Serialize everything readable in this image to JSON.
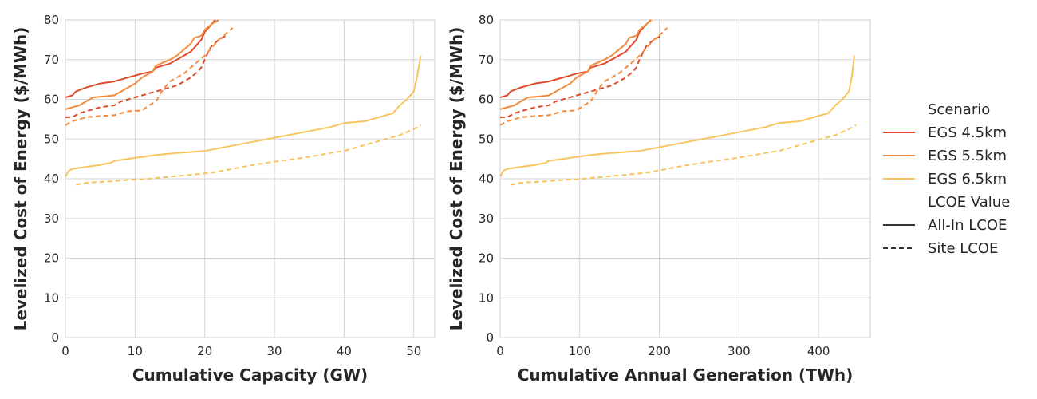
{
  "legend": {
    "title": "Scenario",
    "subtitle": "LCOE Value",
    "scenarios": [
      {
        "name": "EGS 4.5km",
        "color": "#e04a2a"
      },
      {
        "name": "EGS 5.5km",
        "color": "#f28b3c"
      },
      {
        "name": "EGS 6.5km",
        "color": "#f7c55d"
      }
    ],
    "styles": [
      {
        "name": "All-In LCOE",
        "dash": "solid"
      },
      {
        "name": "Site LCOE",
        "dash": "dashed"
      }
    ]
  },
  "chart_data": [
    {
      "type": "line",
      "xlabel": "Cumulative Capacity (GW)",
      "ylabel": "Levelized Cost of Energy ($/MWh)",
      "xlim": [
        0,
        53
      ],
      "ylim": [
        0,
        80
      ],
      "xticks": [
        0,
        10,
        20,
        30,
        40,
        50
      ],
      "yticks": [
        0,
        10,
        20,
        30,
        40,
        50,
        60,
        70,
        80
      ],
      "grid": true,
      "series": [
        {
          "name": "EGS 4.5km",
          "style": "All-In LCOE",
          "color": "#e04a2a",
          "x": [
            0,
            1,
            1.5,
            3,
            5,
            7,
            9,
            10,
            11,
            12.5,
            13,
            15,
            16,
            17,
            18,
            18.5,
            19.5,
            20,
            21,
            21.5
          ],
          "y": [
            60.5,
            61,
            62,
            63,
            64,
            64.5,
            65.5,
            66,
            66.5,
            67,
            68,
            69,
            70,
            71,
            72,
            73,
            75,
            77,
            79,
            80
          ]
        },
        {
          "name": "EGS 4.5km",
          "style": "Site LCOE",
          "color": "#e04a2a",
          "x": [
            0,
            1,
            2,
            3,
            5,
            7,
            8,
            10,
            12,
            13,
            14,
            16,
            17,
            18,
            19,
            19.5,
            20,
            20.5,
            21,
            22,
            23
          ],
          "y": [
            55.5,
            55.5,
            56.5,
            57,
            58,
            58.5,
            59.5,
            60.5,
            61.5,
            62,
            62.5,
            63.5,
            64.5,
            65.5,
            67,
            68,
            70,
            72,
            73.5,
            75,
            76
          ]
        },
        {
          "name": "EGS 5.5km",
          "style": "All-In LCOE",
          "color": "#f28b3c",
          "x": [
            0,
            1,
            2,
            3,
            4,
            6,
            7,
            8,
            9,
            10,
            11,
            12,
            12.5,
            13,
            15,
            16,
            17,
            18,
            18.5,
            19.5,
            20,
            21,
            22
          ],
          "y": [
            57.5,
            58,
            58.5,
            59.5,
            60.5,
            60.8,
            61,
            62,
            63,
            64,
            65.5,
            66.5,
            67,
            68.5,
            70,
            71,
            72.5,
            74,
            75.5,
            76,
            77.5,
            79,
            80
          ]
        },
        {
          "name": "EGS 5.5km",
          "style": "Site LCOE",
          "color": "#f28b3c",
          "x": [
            0,
            1,
            2,
            3,
            5,
            7,
            8,
            9,
            11,
            12,
            13,
            14,
            15,
            16,
            17,
            18,
            19,
            20,
            21,
            22,
            23,
            24
          ],
          "y": [
            53.5,
            54.5,
            55,
            55.5,
            55.8,
            56,
            56.5,
            57,
            57.2,
            58.5,
            59.5,
            62.5,
            64.5,
            65.5,
            66.5,
            68,
            69.5,
            71,
            73,
            75,
            76.5,
            78
          ]
        },
        {
          "name": "EGS 6.5km",
          "style": "All-In LCOE",
          "color": "#f7c55d",
          "x": [
            0,
            0.5,
            1,
            3,
            5,
            6.5,
            7,
            9,
            11,
            13,
            16,
            20,
            23,
            26,
            29,
            32,
            35,
            38,
            40,
            43,
            45,
            47,
            48,
            49,
            50,
            50.5,
            51
          ],
          "y": [
            40.5,
            42,
            42.5,
            43,
            43.5,
            44,
            44.5,
            45,
            45.5,
            46,
            46.5,
            47,
            48,
            49,
            50,
            51,
            52,
            53,
            54,
            54.5,
            55.5,
            56.5,
            58.5,
            60,
            62,
            66,
            71
          ]
        },
        {
          "name": "EGS 6.5km",
          "style": "Site LCOE",
          "color": "#f7c55d",
          "x": [
            1.5,
            3,
            6,
            9,
            12,
            15,
            18,
            21,
            24,
            27,
            30,
            33,
            36,
            38,
            40,
            42,
            44,
            46,
            48,
            50,
            51
          ],
          "y": [
            38.5,
            39,
            39.3,
            39.7,
            40,
            40.5,
            41,
            41.5,
            42.5,
            43.5,
            44.3,
            45,
            45.8,
            46.5,
            47,
            48,
            49,
            50,
            51,
            52.5,
            53.5
          ]
        }
      ]
    },
    {
      "type": "line",
      "xlabel": "Cumulative Annual Generation (TWh)",
      "ylabel": "Levelized Cost of Energy ($/MWh)",
      "xlim": [
        0,
        465
      ],
      "ylim": [
        0,
        80
      ],
      "xticks": [
        0,
        100,
        200,
        300,
        400
      ],
      "yticks": [
        0,
        10,
        20,
        30,
        40,
        50,
        60,
        70,
        80
      ],
      "grid": true,
      "series": [
        {
          "name": "EGS 4.5km",
          "style": "All-In LCOE",
          "color": "#e04a2a",
          "x": [
            0,
            9,
            13,
            26,
            44,
            61,
            79,
            88,
            96,
            110,
            114,
            131,
            140,
            149,
            158,
            162,
            171,
            175,
            184,
            189
          ],
          "y": [
            60.5,
            61,
            62,
            63,
            64,
            64.5,
            65.5,
            66,
            66.5,
            67,
            68,
            69,
            70,
            71,
            72,
            73,
            75,
            77,
            79,
            80
          ]
        },
        {
          "name": "EGS 4.5km",
          "style": "Site LCOE",
          "color": "#e04a2a",
          "x": [
            0,
            9,
            18,
            26,
            44,
            61,
            70,
            88,
            105,
            114,
            123,
            140,
            149,
            158,
            167,
            171,
            175,
            180,
            184,
            193,
            202
          ],
          "y": [
            55.5,
            55.5,
            56.5,
            57,
            58,
            58.5,
            59.5,
            60.5,
            61.5,
            62,
            62.5,
            63.5,
            64.5,
            65.5,
            67,
            68,
            70,
            72,
            73.5,
            75,
            76
          ]
        },
        {
          "name": "EGS 5.5km",
          "style": "All-In LCOE",
          "color": "#f28b3c",
          "x": [
            0,
            9,
            18,
            26,
            35,
            53,
            61,
            70,
            79,
            88,
            96,
            105,
            110,
            114,
            131,
            140,
            149,
            158,
            162,
            171,
            175,
            184,
            190
          ],
          "y": [
            57.5,
            58,
            58.5,
            59.5,
            60.5,
            60.8,
            61,
            62,
            63,
            64,
            65.5,
            66.5,
            67,
            68.5,
            70,
            71,
            72.5,
            74,
            75.5,
            76,
            77.5,
            79,
            80
          ]
        },
        {
          "name": "EGS 5.5km",
          "style": "Site LCOE",
          "color": "#f28b3c",
          "x": [
            0,
            9,
            18,
            26,
            44,
            61,
            70,
            79,
            96,
            105,
            114,
            123,
            131,
            140,
            149,
            158,
            167,
            175,
            184,
            193,
            202,
            210
          ],
          "y": [
            53.5,
            54.5,
            55,
            55.5,
            55.8,
            56,
            56.5,
            57,
            57.2,
            58.5,
            59.5,
            62.5,
            64.5,
            65.5,
            66.5,
            68,
            69.5,
            71,
            73,
            75,
            76.5,
            78
          ]
        },
        {
          "name": "EGS 6.5km",
          "style": "All-In LCOE",
          "color": "#f7c55d",
          "x": [
            0,
            4,
            9,
            26,
            44,
            57,
            61,
            79,
            96,
            114,
            140,
            175,
            202,
            228,
            254,
            281,
            307,
            333,
            350,
            377,
            394,
            412,
            421,
            430,
            438,
            442,
            445
          ],
          "y": [
            40.5,
            42,
            42.5,
            43,
            43.5,
            44,
            44.5,
            45,
            45.5,
            46,
            46.5,
            47,
            48,
            49,
            50,
            51,
            52,
            53,
            54,
            54.5,
            55.5,
            56.5,
            58.5,
            60,
            62,
            66,
            71
          ]
        },
        {
          "name": "EGS 6.5km",
          "style": "Site LCOE",
          "color": "#f7c55d",
          "x": [
            13,
            26,
            53,
            79,
            105,
            131,
            158,
            184,
            210,
            237,
            263,
            289,
            315,
            333,
            350,
            368,
            386,
            403,
            421,
            438,
            447
          ],
          "y": [
            38.5,
            39,
            39.3,
            39.7,
            40,
            40.5,
            41,
            41.5,
            42.5,
            43.5,
            44.3,
            45,
            45.8,
            46.5,
            47,
            48,
            49,
            50,
            51,
            52.5,
            53.5
          ]
        }
      ]
    }
  ]
}
